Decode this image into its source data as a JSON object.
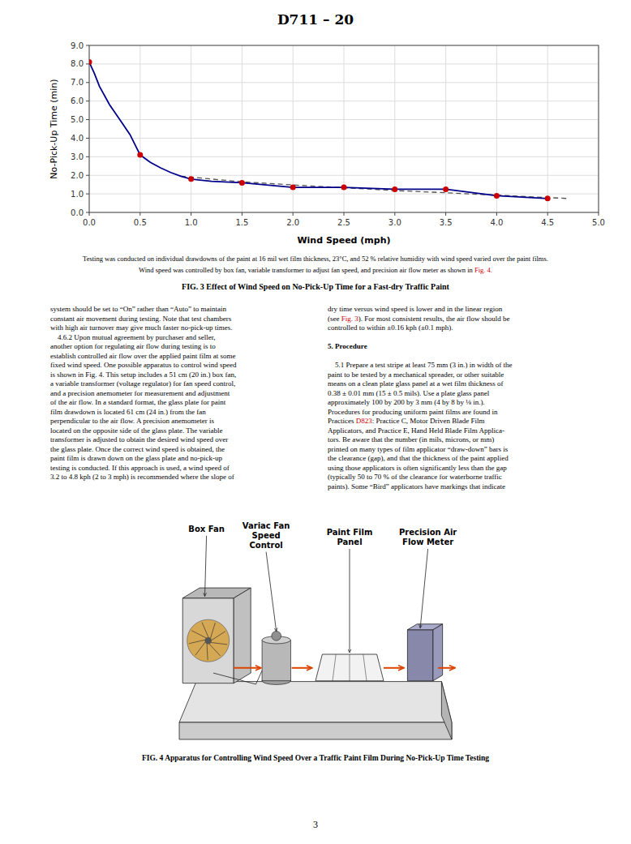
{
  "page": {
    "background": "#ffffff",
    "header": "D711 – 20",
    "caption1": "Testing was conducted on individual drawdowns of the paint at 16 mil wet film thickness, 23°C, and 52 % relative humidity with wind speed varied over the paint films.",
    "caption2": [
      {
        "text": "Wind speed was controlled by box fan, variable transformer to adjust fan speed, and precision air flow meter as shown in "
      },
      {
        "text": "Fig. 4.",
        "color": "#cc0000"
      }
    ],
    "body_left": [
      "system should be set to “On” rather than “Auto” to maintain",
      "constant air movement during testing. Note that test chambers",
      "with high air turnover may give much faster no-pick-up times.",
      "    4.6.2 Upon mutual agreement by purchaser and seller,",
      "another option for regulating air flow during testing is to",
      "establish controlled air flow over the applied paint film at some",
      "fixed wind speed. One possible apparatus to control wind speed",
      "is shown in Fig. 4. This setup includes a 51 cm (20 in.) box fan,",
      "a variable transformer (voltage regulator) for fan speed control,",
      "and a precision anemometer for measurement and adjustment",
      "of the air flow. In a standard format, the glass plate for paint",
      "film drawdown is located 61 cm (24 in.) from the fan",
      "perpendicular to the air flow. A precision anemometer is",
      "located on the opposite side of the glass plate. The variable",
      "transformer is adjusted to obtain the desired wind speed over",
      "the glass plate. Once the correct wind speed is obtained, the",
      "paint film is drawn down on the glass plate and no-pick-up",
      "testing is conducted. If this approach is used, a wind speed of",
      "3.2 to 4.8 kph (2 to 3 mph) is recommended where the slope of"
    ],
    "body_right": [
      [
        [
          {
            "text": "dry time versus wind speed is lower and in the linear region"
          }
        ],
        [
          {
            "text": "(see "
          },
          {
            "text": "Fig. 3",
            "color": "#cc0000"
          },
          {
            "text": "). For most consistent results, the air flow should be"
          }
        ],
        [
          {
            "text": "controlled to within ±0.16 kph (±0.1 mph)."
          }
        ]
      ],
      [
        [
          {
            "text": "5. Procedure",
            "bold": true
          }
        ]
      ],
      [
        [
          {
            "text": "    5.1 Prepare a test stripe at least 75 mm (3 in.) in width of the"
          }
        ],
        [
          {
            "text": "paint to be tested by a mechanical spreader, or other suitable"
          }
        ],
        [
          {
            "text": "means on a clean plate glass panel at a wet film thickness of"
          }
        ],
        [
          {
            "text": "0.38 ± 0.01 mm (15 ± 0.5 mils). Use a plate glass panel"
          }
        ],
        [
          {
            "text": "approximately 100 by 200 by 3 mm (4 by 8 by ⅛ in.)."
          }
        ],
        [
          {
            "text": "Procedures for producing uniform paint films are found in"
          }
        ],
        [
          {
            "text": "Practices "
          },
          {
            "text": "D823",
            "color": "#cc0000"
          },
          {
            "text": ": Practice C, Motor Driven Blade Film"
          }
        ],
        [
          {
            "text": "Applicators, and Practice E, Hand Held Blade Film Applica-"
          }
        ],
        [
          {
            "text": "tors. Be aware that the number (in mils, microns, or mm)"
          }
        ],
        [
          {
            "text": "printed on many types of film applicator “draw-down” bars is"
          }
        ],
        [
          {
            "text": "the clearance (gap), and that the thickness of the paint applied"
          }
        ],
        [
          {
            "text": "using those applicators is often significantly less than the gap"
          }
        ],
        [
          {
            "text": "(typically 50 to 70 % of the clearance for waterborne traffic"
          }
        ],
        [
          {
            "text": "paints). Some “Bird” applicators have markings that indicate"
          }
        ]
      ]
    ],
    "diagram_labels": [
      "Box Fan",
      "Variac Fan\nSpeed\nControl",
      "Paint Film\nPanel",
      "Precision Air\nFlow Meter"
    ],
    "fig4_caption": "FIG. 4 Apparatus for Controlling Wind Speed Over a Traffic Paint Film During No-Pick-Up Time Testing",
    "page_number": "3"
  },
  "chart_data": {
    "type": "line",
    "title": "FIG. 3 Effect of Wind Speed on No-Pick-Up Time for a Fast-dry Traffic Paint",
    "x_label": "Wind Speed (mph)",
    "y_label": "No-Pick-Up Time (min)",
    "series": [
      {
        "type": "line",
        "line_style": "dashed",
        "color": "#555555",
        "x": [
          0.9,
          1.5,
          2.0,
          2.5,
          3.0,
          3.5,
          4.0,
          4.7
        ],
        "values": [
          1.95,
          1.65,
          1.48,
          1.33,
          1.18,
          1.06,
          0.93,
          0.75
        ]
      },
      {
        "type": "line",
        "line_style": "solid",
        "color": "#00008B",
        "x": [
          0.0,
          0.05,
          0.1,
          0.2,
          0.3,
          0.4,
          0.5,
          0.6,
          0.7,
          0.8,
          0.9,
          1.0,
          1.2,
          1.5,
          2.0,
          2.5,
          3.0,
          3.5,
          4.0,
          4.5
        ],
        "values": [
          8.1,
          7.5,
          6.8,
          5.8,
          5.0,
          4.2,
          3.1,
          2.7,
          2.4,
          2.15,
          1.95,
          1.8,
          1.68,
          1.6,
          1.35,
          1.35,
          1.25,
          1.25,
          0.9,
          0.75
        ]
      },
      {
        "type": "scatter",
        "marker": "circle",
        "color": "#cc0000",
        "x": [
          0.0,
          0.5,
          1.0,
          1.5,
          2.0,
          2.5,
          3.0,
          3.5,
          4.0,
          4.5
        ],
        "values": [
          8.1,
          3.1,
          1.8,
          1.6,
          1.35,
          1.35,
          1.25,
          1.25,
          0.9,
          0.75
        ]
      }
    ],
    "xlim": [
      0,
      5
    ],
    "ylim": [
      0,
      9
    ],
    "xticks": [
      {
        "value": 0,
        "label": "0.0"
      },
      0.5,
      {
        "value": 1,
        "label": "1.0"
      },
      1.5,
      {
        "value": 2,
        "label": "2.0"
      },
      2.5,
      {
        "value": 3,
        "label": "3.0"
      },
      3.5,
      {
        "value": 4,
        "label": "4.0"
      },
      4.5,
      {
        "value": 5,
        "label": "5.0"
      }
    ],
    "yticks": [
      {
        "value": 0,
        "label": "0.0"
      },
      {
        "value": 1,
        "label": "1.0"
      },
      {
        "value": 2,
        "label": "2.0"
      },
      {
        "value": 3,
        "label": "3.0"
      },
      {
        "value": 4,
        "label": "4.0"
      },
      {
        "value": 5,
        "label": "5.0"
      },
      {
        "value": 6,
        "label": "6.0"
      },
      {
        "value": 7,
        "label": "7.0"
      },
      {
        "value": 8,
        "label": "8.0"
      },
      {
        "value": 9,
        "label": "9.0"
      }
    ],
    "grid": true
  }
}
